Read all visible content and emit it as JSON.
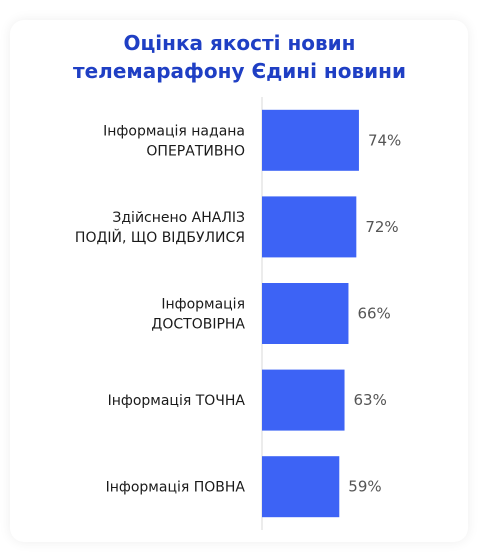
{
  "chart_data": {
    "type": "bar",
    "orientation": "horizontal",
    "title_lines": [
      "Оцінка якості новин",
      "телемарафону Єдині новини"
    ],
    "categories": [
      [
        "Інформація надана",
        "ОПЕРАТИВНО"
      ],
      [
        "Здійснено АНАЛІЗ",
        "ПОДІЙ, ЩО ВІДБУЛИСЯ"
      ],
      [
        "Інформація",
        "ДОСТОВІРНА"
      ],
      [
        "Інформація ТОЧНА"
      ],
      [
        "Інформація ПОВНА"
      ]
    ],
    "values": [
      74,
      72,
      66,
      63,
      59
    ],
    "value_labels": [
      "74%",
      "72%",
      "66%",
      "63%",
      "59%"
    ],
    "xlim": [
      0,
      100
    ],
    "bar_color": "#3d63f5",
    "grid": false,
    "legend": "none"
  },
  "colors": {
    "title": "#1f3fc4",
    "axis": "#d9d9d9"
  }
}
